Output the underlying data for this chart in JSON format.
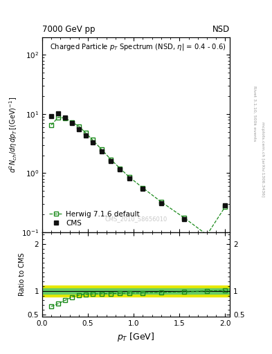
{
  "title_top": "7000 GeV pp",
  "title_top_right": "NSD",
  "watermark": "CMS_2010_S8656010",
  "right_label1": "Rivet 3.1.10, 500k events",
  "right_label2": "mcplots.cern.ch [arXiv:1306.3436]",
  "cms_pt": [
    0.1,
    0.175,
    0.25,
    0.325,
    0.4,
    0.475,
    0.55,
    0.65,
    0.75,
    0.85,
    0.95,
    1.1,
    1.3,
    1.55,
    1.8,
    2.0
  ],
  "cms_val": [
    9.3,
    10.2,
    8.7,
    7.0,
    5.5,
    4.3,
    3.3,
    2.35,
    1.6,
    1.15,
    0.82,
    0.54,
    0.31,
    0.165,
    0.085,
    0.28
  ],
  "herwig_pt": [
    0.1,
    0.175,
    0.25,
    0.325,
    0.4,
    0.475,
    0.55,
    0.65,
    0.75,
    0.85,
    0.95,
    1.1,
    1.3,
    1.55,
    1.8,
    2.0
  ],
  "herwig_val": [
    6.5,
    8.8,
    8.5,
    7.3,
    6.2,
    4.8,
    3.65,
    2.5,
    1.7,
    1.2,
    0.86,
    0.56,
    0.325,
    0.175,
    0.09,
    0.27
  ],
  "ratio_pt": [
    0.1,
    0.175,
    0.25,
    0.325,
    0.4,
    0.475,
    0.55,
    0.65,
    0.75,
    0.85,
    0.95,
    1.1,
    1.3,
    1.55,
    1.8,
    2.0
  ],
  "ratio_val": [
    0.67,
    0.73,
    0.8,
    0.87,
    0.91,
    0.925,
    0.935,
    0.94,
    0.945,
    0.95,
    0.955,
    0.96,
    0.97,
    0.98,
    1.0,
    1.01
  ],
  "ylim_main": [
    0.1,
    200
  ],
  "ylim_ratio": [
    0.45,
    2.25
  ],
  "band_yellow_low": 0.885,
  "band_yellow_high": 1.115,
  "band_green_low": 0.94,
  "band_green_high": 1.06,
  "cms_color": "#111111",
  "herwig_color": "#1a8a1a",
  "band_yellow_color": "#e8e800",
  "band_green_color": "#66cc66",
  "ref_line_color": "#000000",
  "background_color": "#ffffff"
}
